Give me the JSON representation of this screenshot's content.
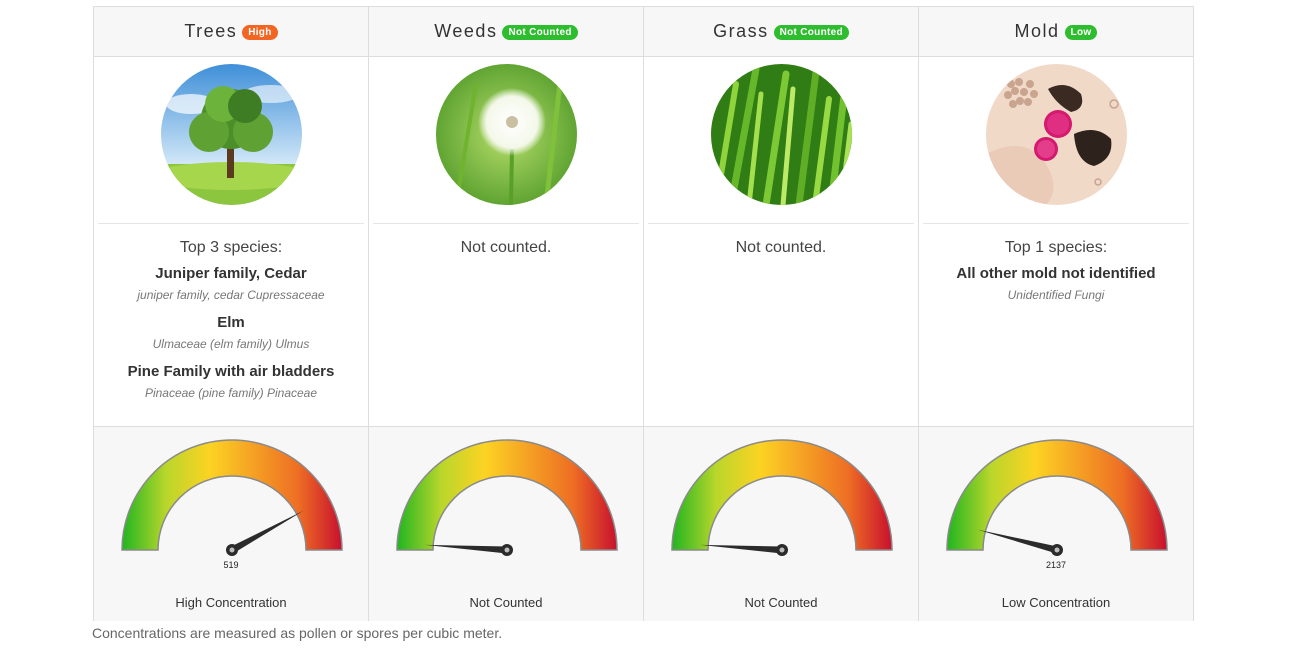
{
  "columns": [
    {
      "key": "trees",
      "title": "Trees",
      "badge": "High",
      "badge_color": "#f26522",
      "image": "tree-photo",
      "species_heading": "Top 3 species:",
      "species": [
        {
          "name": "Juniper family, Cedar",
          "latin": "juniper family, cedar Cupressaceae"
        },
        {
          "name": "Elm",
          "latin": "Ulmaceae (elm family) Ulmus"
        },
        {
          "name": "Pine Family with air bladders",
          "latin": "Pinaceae (pine family) Pinaceae"
        }
      ],
      "gauge": {
        "level": 0.84,
        "value_label": "519",
        "caption": "High Concentration"
      }
    },
    {
      "key": "weeds",
      "title": "Weeds",
      "badge": "Not Counted",
      "badge_color": "#2ebd2e",
      "image": "dandelion-photo",
      "not_counted_text": "Not counted.",
      "gauge": {
        "level": 0.02,
        "value_label": "",
        "caption": "Not Counted"
      }
    },
    {
      "key": "grass",
      "title": "Grass",
      "badge": "Not Counted",
      "badge_color": "#2ebd2e",
      "image": "grass-photo",
      "not_counted_text": "Not counted.",
      "gauge": {
        "level": 0.02,
        "value_label": "",
        "caption": "Not Counted"
      }
    },
    {
      "key": "mold",
      "title": "Mold",
      "badge": "Low",
      "badge_color": "#2ebd2e",
      "image": "mold-photo",
      "species_heading": "Top 1 species:",
      "species": [
        {
          "name": "All other mold not identified",
          "latin": "Unidentified Fungi"
        }
      ],
      "gauge": {
        "level": 0.08,
        "value_label": "2137",
        "caption": "Low Concentration"
      }
    }
  ],
  "gauge_colors": [
    "#21b521",
    "#b9d62b",
    "#fcd323",
    "#f5a024",
    "#ee6e24",
    "#c8102e"
  ],
  "footnote": "Concentrations are measured as pollen or spores per cubic meter."
}
